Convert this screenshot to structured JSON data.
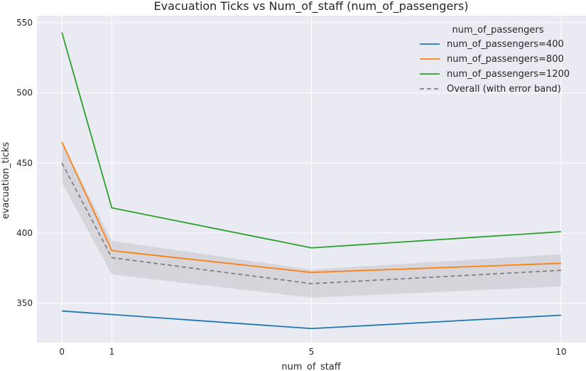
{
  "chart_data": {
    "type": "line",
    "title": "Evacuation Ticks vs Num_of_staff (num_of_passengers)",
    "xlabel": "num_of_staff",
    "ylabel": "evacuation_ticks",
    "x": [
      0,
      1,
      5,
      10
    ],
    "xlim": [
      -0.5,
      10.5
    ],
    "ylim": [
      322,
      555
    ],
    "yticks": [
      350,
      400,
      450,
      500,
      550
    ],
    "xticks": [
      0,
      1,
      5,
      10
    ],
    "grid": true,
    "legend_title": "num_of_passengers",
    "legend_position": "top-right",
    "series": [
      {
        "name": "num_of_passengers=400",
        "color": "#1f77b4",
        "dashed": false,
        "values": [
          344.5,
          342,
          332,
          341.5
        ]
      },
      {
        "name": "num_of_passengers=800",
        "color": "#ff7f0e",
        "dashed": false,
        "values": [
          465,
          387.5,
          372,
          378.5
        ]
      },
      {
        "name": "num_of_passengers=1200",
        "color": "#2ca02c",
        "dashed": false,
        "values": [
          543,
          418,
          389.5,
          401
        ]
      },
      {
        "name": "Overall (with error band)",
        "color": "#808080",
        "dashed": true,
        "values": [
          450,
          382.5,
          364,
          373.5
        ],
        "band_lower": [
          436,
          370.5,
          354,
          362
        ],
        "band_upper": [
          464,
          394.5,
          374,
          385
        ]
      }
    ]
  }
}
